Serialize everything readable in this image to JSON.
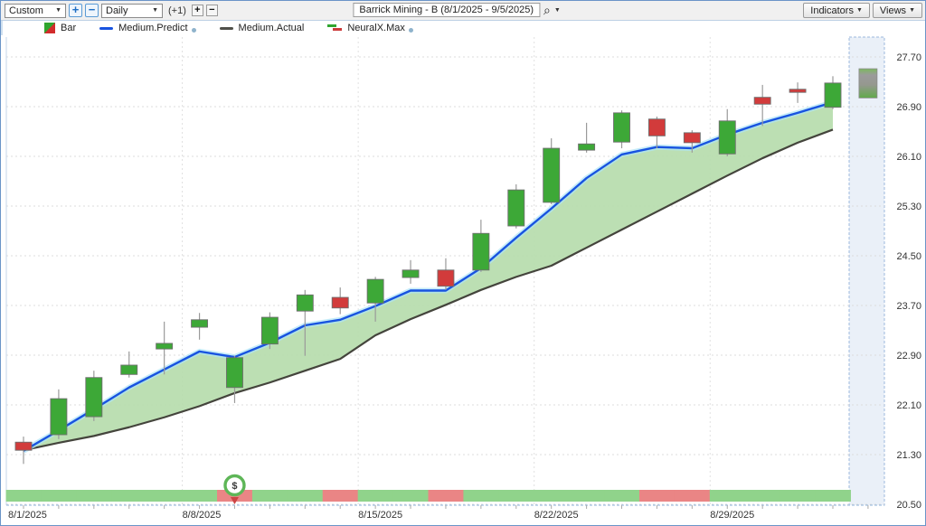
{
  "toolbar": {
    "chart_type": "Custom",
    "timeframe": "Daily",
    "offset_label": "(+1)",
    "zoom_in": "+",
    "zoom_out": "−",
    "bar_plus": "+",
    "bar_minus": "−",
    "symbol_title": "Barrick Mining - B (8/1/2025 - 9/5/2025)",
    "indicators_label": "Indicators",
    "views_label": "Views"
  },
  "icons": {
    "caret": "▼",
    "search": "⌕"
  },
  "legend": {
    "bar_label": "Bar",
    "predict_label": "Medium.Predict",
    "actual_label": "Medium.Actual",
    "neuralx_label": "NeuralX.Max"
  },
  "colors": {
    "candle_up": "#3da837",
    "candle_down": "#d23b3b",
    "candle_border": "#6e6e6e",
    "wick": "#9a9a9a",
    "predict_line": "#1853e0",
    "predict_glow": "#aee4f7",
    "actual_line": "#44443c",
    "area_fill": "#b6dcac",
    "strip_green": "#90d38b",
    "strip_red": "#ea8585",
    "band_fill": "#eaf0f8",
    "band_border": "#9cb9de",
    "grid": "#dcdcdc",
    "axis": "#8fb4dd",
    "label_text": "#333333",
    "dollar_ring": "#5eb657",
    "dollar_pointer": "#cc4444"
  },
  "chart_data": {
    "type": "candlestick",
    "title": "Barrick Mining - B (8/1/2025 - 9/5/2025)",
    "ylim": [
      20.5,
      27.7
    ],
    "y_ticks": [
      27.7,
      26.9,
      26.1,
      25.3,
      24.5,
      23.7,
      22.9,
      22.1,
      21.3,
      20.5
    ],
    "x_labels": [
      {
        "label": "8/1/2025",
        "index": 0
      },
      {
        "label": "8/8/2025",
        "index": 5
      },
      {
        "label": "8/15/2025",
        "index": 10
      },
      {
        "label": "8/22/2025",
        "index": 15
      },
      {
        "label": "8/29/2025",
        "index": 20
      }
    ],
    "grid": true,
    "legend_position": "top-left",
    "candles": [
      {
        "date": "8/1/2025",
        "o": 21.5,
        "h": 21.59,
        "l": 21.15,
        "c": 21.37,
        "dir": "down"
      },
      {
        "date": "8/4/2025",
        "o": 21.62,
        "h": 22.35,
        "l": 21.55,
        "c": 22.2,
        "dir": "up"
      },
      {
        "date": "8/5/2025",
        "o": 21.91,
        "h": 22.65,
        "l": 21.84,
        "c": 22.54,
        "dir": "up"
      },
      {
        "date": "8/6/2025",
        "o": 22.59,
        "h": 22.96,
        "l": 22.54,
        "c": 22.74,
        "dir": "up"
      },
      {
        "date": "8/7/2025",
        "o": 23.0,
        "h": 23.44,
        "l": 22.59,
        "c": 23.09,
        "dir": "up"
      },
      {
        "date": "8/8/2025",
        "o": 23.35,
        "h": 23.58,
        "l": 23.15,
        "c": 23.47,
        "dir": "up"
      },
      {
        "date": "8/11/2025",
        "o": 22.38,
        "h": 22.89,
        "l": 22.13,
        "c": 22.86,
        "dir": "up"
      },
      {
        "date": "8/12/2025",
        "o": 23.08,
        "h": 23.59,
        "l": 23.0,
        "c": 23.51,
        "dir": "up"
      },
      {
        "date": "8/13/2025",
        "o": 23.61,
        "h": 23.95,
        "l": 22.89,
        "c": 23.87,
        "dir": "up"
      },
      {
        "date": "8/14/2025",
        "o": 23.83,
        "h": 23.99,
        "l": 23.56,
        "c": 23.66,
        "dir": "down"
      },
      {
        "date": "8/15/2025",
        "o": 23.74,
        "h": 24.16,
        "l": 23.44,
        "c": 24.12,
        "dir": "up"
      },
      {
        "date": "8/18/2025",
        "o": 24.15,
        "h": 24.43,
        "l": 24.05,
        "c": 24.27,
        "dir": "up"
      },
      {
        "date": "8/19/2025",
        "o": 24.27,
        "h": 24.46,
        "l": 23.95,
        "c": 24.01,
        "dir": "down"
      },
      {
        "date": "8/20/2025",
        "o": 24.27,
        "h": 25.08,
        "l": 24.24,
        "c": 24.86,
        "dir": "up"
      },
      {
        "date": "8/21/2025",
        "o": 24.98,
        "h": 25.65,
        "l": 24.94,
        "c": 25.56,
        "dir": "up"
      },
      {
        "date": "8/22/2025",
        "o": 25.36,
        "h": 26.39,
        "l": 25.33,
        "c": 26.23,
        "dir": "up"
      },
      {
        "date": "8/25/2025",
        "o": 26.2,
        "h": 26.64,
        "l": 26.16,
        "c": 26.3,
        "dir": "up"
      },
      {
        "date": "8/26/2025",
        "o": 26.33,
        "h": 26.84,
        "l": 26.23,
        "c": 26.8,
        "dir": "up"
      },
      {
        "date": "8/27/2025",
        "o": 26.7,
        "h": 26.74,
        "l": 26.23,
        "c": 26.43,
        "dir": "down"
      },
      {
        "date": "8/28/2025",
        "o": 26.48,
        "h": 26.52,
        "l": 26.16,
        "c": 26.32,
        "dir": "down"
      },
      {
        "date": "8/29/2025",
        "o": 26.14,
        "h": 26.86,
        "l": 26.1,
        "c": 26.67,
        "dir": "up"
      },
      {
        "date": "9/2/2025",
        "o": 27.05,
        "h": 27.25,
        "l": 26.59,
        "c": 26.94,
        "dir": "down"
      },
      {
        "date": "9/3/2025",
        "o": 27.18,
        "h": 27.29,
        "l": 26.96,
        "c": 27.13,
        "dir": "down"
      },
      {
        "date": "9/4/2025",
        "o": 26.89,
        "h": 27.39,
        "l": 26.86,
        "c": 27.28,
        "dir": "up"
      }
    ],
    "series": [
      {
        "name": "Medium.Predict",
        "values": [
          21.36,
          21.69,
          22.03,
          22.38,
          22.67,
          22.96,
          22.87,
          23.1,
          23.38,
          23.47,
          23.69,
          23.94,
          23.94,
          24.3,
          24.79,
          25.26,
          25.75,
          26.13,
          26.25,
          26.23,
          26.45,
          26.64,
          26.8,
          26.97
        ]
      },
      {
        "name": "Medium.Actual",
        "values": [
          21.37,
          21.49,
          21.6,
          21.74,
          21.9,
          22.08,
          22.29,
          22.46,
          22.65,
          22.84,
          23.22,
          23.48,
          23.71,
          23.95,
          24.16,
          24.34,
          24.63,
          24.92,
          25.21,
          25.5,
          25.79,
          26.07,
          26.32,
          26.53
        ]
      }
    ],
    "prediction_bar": {
      "date": "9/5/2025",
      "high": 27.51,
      "low": 27.04
    },
    "neuralx_max": [
      "green",
      "green",
      "green",
      "green",
      "green",
      "green",
      "red",
      "green",
      "green",
      "red",
      "green",
      "green",
      "red",
      "green",
      "green",
      "green",
      "green",
      "green",
      "red",
      "red",
      "green",
      "green",
      "green",
      "green"
    ],
    "dollar_marker": {
      "index": 6,
      "symbol": "$"
    }
  }
}
